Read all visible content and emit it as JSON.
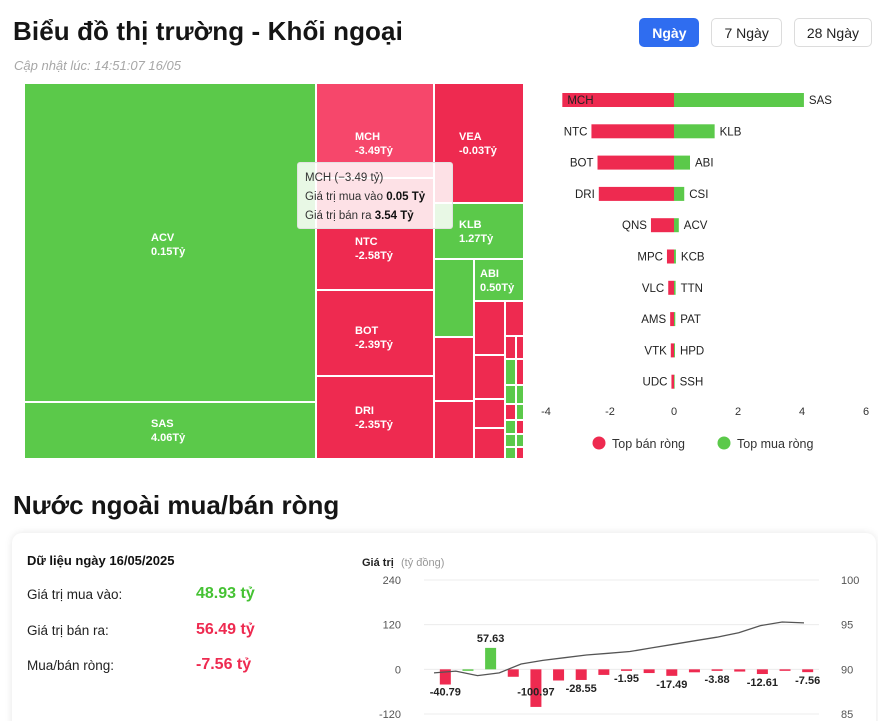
{
  "header": {
    "title": "Biểu đồ thị trường - Khối ngoại",
    "updated": "Cập nhật lúc: 14:51:07 16/05"
  },
  "ranges": [
    "Ngày",
    "7 Ngày",
    "28 Ngày"
  ],
  "colors": {
    "buy": "#5bc94a",
    "sell": "#ee2a50",
    "accent": "#2f6df0"
  },
  "treemap": {
    "tiles": [
      {
        "code": "ACV",
        "label": "0.15Tỷ"
      },
      {
        "code": "SAS",
        "label": "4.06Tỷ"
      },
      {
        "code": "MCH",
        "label": "-3.49Tỷ"
      },
      {
        "code": "NTC",
        "label": "-2.58Tỷ"
      },
      {
        "code": "BOT",
        "label": "-2.39Tỷ"
      },
      {
        "code": "DRI",
        "label": "-2.35Tỷ"
      },
      {
        "code": "VEA",
        "label": "-0.03Tỷ"
      },
      {
        "code": "KLB",
        "label": "1.27Tỷ"
      },
      {
        "code": "ABI",
        "label": "0.50Tỷ"
      }
    ],
    "tooltip": {
      "title": "MCH (−3.49 tỷ)",
      "buy_label": "Giá trị mua vào",
      "buy_value": "0.05 Tỷ",
      "sell_label": "Giá trị bán ra",
      "sell_value": "3.54 Tỷ"
    }
  },
  "chart_data": [
    {
      "type": "bar",
      "orientation": "horizontal",
      "sell_categories": [
        "MCH",
        "NTC",
        "BOT",
        "DRI",
        "QNS",
        "MPC",
        "VLC",
        "AMS",
        "VTK",
        "UDC"
      ],
      "buy_categories": [
        "SAS",
        "KLB",
        "ABI",
        "CSI",
        "ACV",
        "KCB",
        "TTN",
        "PAT",
        "HPD",
        "SSH"
      ],
      "series": [
        {
          "name": "Top bán ròng",
          "values": [
            -3.49,
            -2.58,
            -2.39,
            -2.35,
            -0.72,
            -0.22,
            -0.18,
            -0.12,
            -0.1,
            -0.08
          ]
        },
        {
          "name": "Top mua ròng",
          "values": [
            4.06,
            1.27,
            0.5,
            0.32,
            0.15,
            0.06,
            0.05,
            0.04,
            0.03,
            0.02
          ]
        }
      ],
      "xlim": [
        -4,
        6
      ],
      "xticks": [
        "-4",
        "-2",
        "0",
        "2",
        "4",
        "6"
      ],
      "legend": "bottom"
    },
    {
      "type": "bar+line",
      "title": "Giá trị",
      "title_unit": "(tỷ đồng)",
      "left_axis": {
        "ticks": [
          "240",
          "120",
          "0",
          "-120"
        ],
        "range": [
          -120,
          240
        ]
      },
      "right_axis": {
        "ticks": [
          "100",
          "95",
          "90",
          "85"
        ],
        "range": [
          85,
          100
        ]
      },
      "bars": [
        -40.79,
        0,
        57.63,
        -20,
        -100.97,
        -30,
        -28.55,
        -15,
        -1.95,
        -10,
        -17.49,
        -8,
        -3.88,
        -6,
        -12.61,
        -4,
        -7.56
      ],
      "bar_labels": [
        "-40.79",
        "57.63",
        "-100.97",
        "-28.55",
        "-1.95",
        "-17.49",
        "-3.88",
        "-12.61",
        "-7.56"
      ],
      "line": [
        89.6,
        89.8,
        89.3,
        89.6,
        90.6,
        91.0,
        91.3,
        91.6,
        91.8,
        92.0,
        92.4,
        92.8,
        93.2,
        93.6,
        94.1,
        94.9,
        95.3,
        95.2
      ]
    }
  ],
  "summary": {
    "title": "Nước ngoài mua/bán ròng",
    "date_line": "Dữ liệu ngày 16/05/2025",
    "buy_label": "Giá trị mua vào:",
    "buy_value": "48.93 tỷ",
    "sell_label": "Giá trị bán ra:",
    "sell_value": "56.49 tỷ",
    "net_label": "Mua/bán ròng:",
    "net_value": "-7.56 tỷ"
  }
}
